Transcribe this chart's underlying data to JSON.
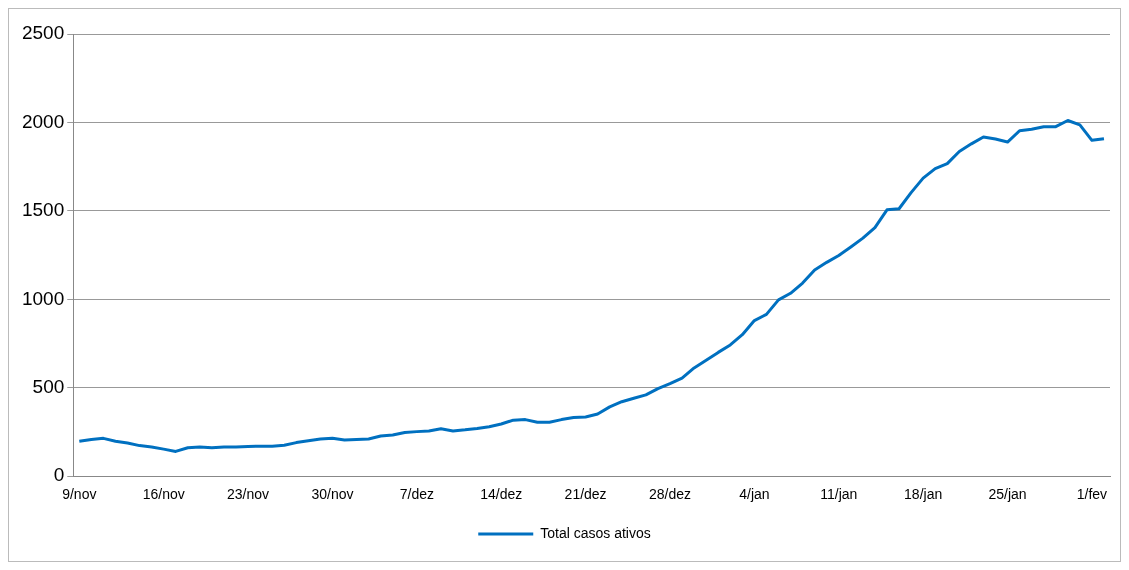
{
  "chart_data": {
    "type": "line",
    "categories": [
      "9/nov",
      null,
      null,
      null,
      null,
      null,
      null,
      "16/nov",
      null,
      null,
      null,
      null,
      null,
      null,
      "23/nov",
      null,
      null,
      null,
      null,
      null,
      null,
      "30/nov",
      null,
      null,
      null,
      null,
      null,
      null,
      "7/dez",
      null,
      null,
      null,
      null,
      null,
      null,
      "14/dez",
      null,
      null,
      null,
      null,
      null,
      null,
      "21/dez",
      null,
      null,
      null,
      null,
      null,
      null,
      "28/dez",
      null,
      null,
      null,
      null,
      null,
      null,
      "4/jan",
      null,
      null,
      null,
      null,
      null,
      null,
      "11/jan",
      null,
      null,
      null,
      null,
      null,
      null,
      "18/jan",
      null,
      null,
      null,
      null,
      null,
      null,
      "25/jan",
      null,
      null,
      null,
      null,
      null,
      null,
      "1/fev",
      null
    ],
    "series": [
      {
        "name": "Total casos ativos",
        "color": "#0070c0",
        "values": [
          198,
          208,
          214,
          198,
          188,
          173,
          165,
          153,
          140,
          161,
          165,
          161,
          165,
          165,
          168,
          170,
          170,
          175,
          190,
          200,
          210,
          214,
          205,
          207,
          210,
          227,
          233,
          247,
          252,
          256,
          268,
          256,
          262,
          270,
          280,
          295,
          317,
          320,
          305,
          305,
          320,
          332,
          335,
          352,
          392,
          421,
          441,
          460,
          495,
          523,
          555,
          612,
          655,
          700,
          742,
          800,
          880,
          915,
          997,
          1034,
          1092,
          1166,
          1209,
          1248,
          1296,
          1346,
          1405,
          1506,
          1512,
          1603,
          1685,
          1739,
          1767,
          1836,
          1879,
          1918,
          1906,
          1889,
          1953,
          1961,
          1976,
          1976,
          2011,
          1986,
          1899,
          1908
        ]
      }
    ],
    "ylim": [
      0,
      2500
    ],
    "yticks": [
      0,
      500,
      1000,
      1500,
      2000,
      2500
    ],
    "grid": "y",
    "legend": "bottom",
    "marker": "none",
    "line_style": "solid"
  }
}
